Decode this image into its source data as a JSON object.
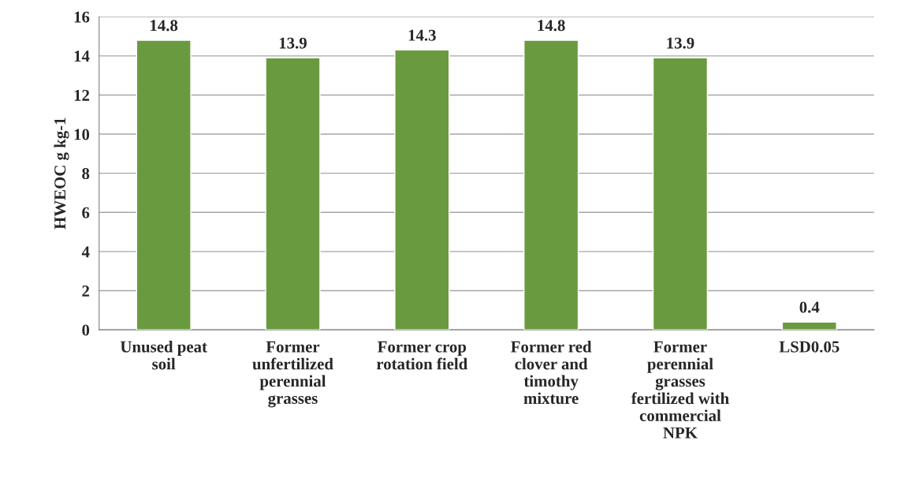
{
  "chart_data": {
    "type": "bar",
    "ylabel": "HWEOC g kg-1",
    "categories": [
      "Unused peat\nsoil",
      "Former\nunfertilized\nperennial\ngrasses",
      "Former crop\nrotation field",
      "Former red\nclover and\ntimothy\nmixture",
      "Former\nperennial\ngrasses\nfertilized with\ncommercial\nNPK",
      "LSD0.05"
    ],
    "values": [
      14.8,
      13.9,
      14.3,
      14.8,
      13.9,
      0.4
    ],
    "color": "#6a9a3f",
    "ylim": [
      0,
      16
    ],
    "yticks": [
      0,
      2,
      4,
      6,
      8,
      10,
      12,
      14,
      16
    ],
    "grid": "y",
    "data_labels": true
  }
}
